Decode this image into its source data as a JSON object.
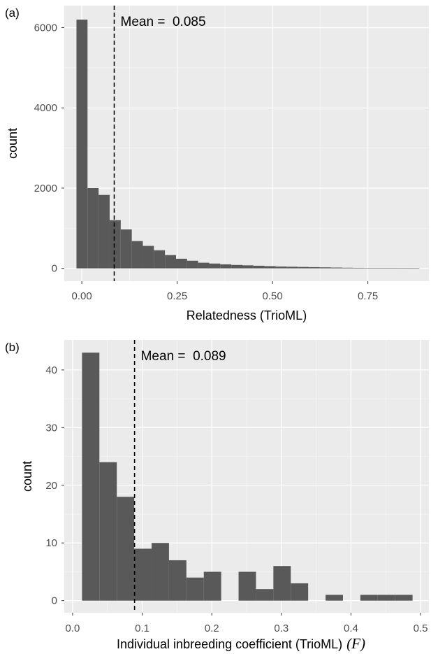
{
  "chart_data": [
    {
      "type": "bar",
      "panel_label": "(a)",
      "title": "",
      "xlabel": "Relatedness (TrioML)",
      "ylabel": "count",
      "xlim": [
        -0.046,
        0.91
      ],
      "ylim": [
        -320,
        6550
      ],
      "x_ticks": [
        0.0,
        0.25,
        0.5,
        0.75
      ],
      "x_tick_labels": [
        "0.00",
        "0.25",
        "0.50",
        "0.75"
      ],
      "y_ticks": [
        0,
        2000,
        4000,
        6000
      ],
      "y_tick_labels": [
        "0",
        "2000",
        "4000",
        "6000"
      ],
      "bin_edges": [
        -0.014,
        0.015,
        0.044,
        0.073,
        0.102,
        0.131,
        0.16,
        0.189,
        0.218,
        0.247,
        0.276,
        0.305,
        0.334,
        0.363,
        0.392,
        0.421,
        0.45,
        0.479,
        0.508,
        0.537,
        0.566,
        0.595,
        0.624,
        0.653,
        0.682,
        0.711,
        0.74,
        0.769,
        0.798,
        0.827,
        0.856,
        0.885
      ],
      "counts": [
        6200,
        2000,
        1830,
        1200,
        970,
        680,
        560,
        450,
        330,
        240,
        190,
        140,
        120,
        100,
        85,
        75,
        65,
        55,
        45,
        40,
        35,
        30,
        25,
        20,
        15,
        12,
        10,
        8,
        6,
        4,
        3
      ],
      "mean_value": 0.085,
      "mean_label": "Mean =  0.085",
      "grid": true
    },
    {
      "type": "bar",
      "panel_label": "(b)",
      "title": "",
      "xlabel": "Individual inbreeding coefficient (TrioML)",
      "xlabel_symbol": "(F)",
      "ylabel": "count",
      "xlim": [
        -0.012,
        0.512
      ],
      "ylim": [
        -2.1,
        45.2
      ],
      "x_ticks": [
        0.0,
        0.1,
        0.2,
        0.3,
        0.4,
        0.5
      ],
      "x_tick_labels": [
        "0.0",
        "0.1",
        "0.2",
        "0.3",
        "0.4",
        "0.5"
      ],
      "y_ticks": [
        0,
        10,
        20,
        30,
        40
      ],
      "y_tick_labels": [
        "0",
        "10",
        "20",
        "30",
        "40"
      ],
      "bin_edges": [
        0.0135,
        0.0385,
        0.0635,
        0.0885,
        0.1135,
        0.1385,
        0.1635,
        0.1885,
        0.2135,
        0.2385,
        0.2635,
        0.2885,
        0.3135,
        0.3385,
        0.3635,
        0.3885,
        0.4135,
        0.4385,
        0.4635,
        0.4885
      ],
      "counts": [
        43,
        24,
        18,
        9,
        10,
        7,
        4,
        5,
        0,
        5,
        2,
        6,
        3,
        0,
        1,
        0,
        1,
        1,
        1
      ],
      "mean_value": 0.089,
      "mean_label": "Mean =  0.089",
      "grid": true
    }
  ]
}
